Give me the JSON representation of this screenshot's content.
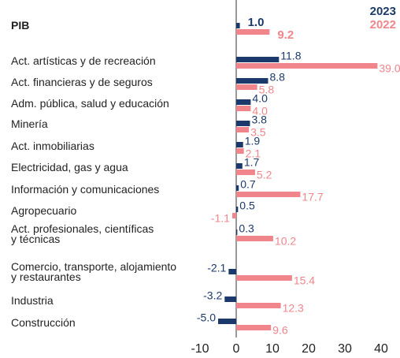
{
  "chart_data": {
    "type": "bar",
    "orientation": "horizontal",
    "categories": [
      "PIB",
      "Act. artísticas y de recreación",
      "Act. financieras y de seguros",
      "Adm. pública, salud y educación",
      "Minería",
      "Act. inmobiliarias",
      "Electricidad, gas y agua",
      "Información y comunicaciones",
      "Agropecuario",
      "Act. profesionales, científicas\ny técnicas",
      "Comercio, transporte, alojamiento\ny restaurantes",
      "Industria",
      "Construcción"
    ],
    "series": [
      {
        "name": "2023",
        "color": "#1b3a6b",
        "values": [
          1.0,
          11.8,
          8.8,
          4.0,
          3.8,
          1.9,
          1.7,
          0.7,
          0.5,
          0.3,
          -2.1,
          -3.2,
          -5.0
        ],
        "value_labels": [
          "1.0",
          "11.8",
          "8.8",
          "4.0",
          "3.8",
          "1.9",
          "1.7",
          "0.7",
          "0.5",
          "0.3",
          "-2.1",
          "-3.2",
          "-5.0"
        ]
      },
      {
        "name": "2022",
        "color": "#f0868c",
        "values": [
          9.2,
          39.0,
          5.8,
          4.0,
          3.5,
          2.1,
          5.2,
          17.7,
          -1.1,
          10.2,
          15.4,
          12.3,
          9.6
        ],
        "value_labels": [
          "9.2",
          "39.0",
          "5.8",
          "4.0",
          "3.5",
          "2.1",
          "5.2",
          "17.7",
          "-1.1",
          "10.2",
          "15.4",
          "12.3",
          "9.6"
        ]
      }
    ],
    "xlim": [
      -10,
      40
    ],
    "xticks": [
      -10,
      0,
      10,
      20,
      30,
      40
    ]
  }
}
